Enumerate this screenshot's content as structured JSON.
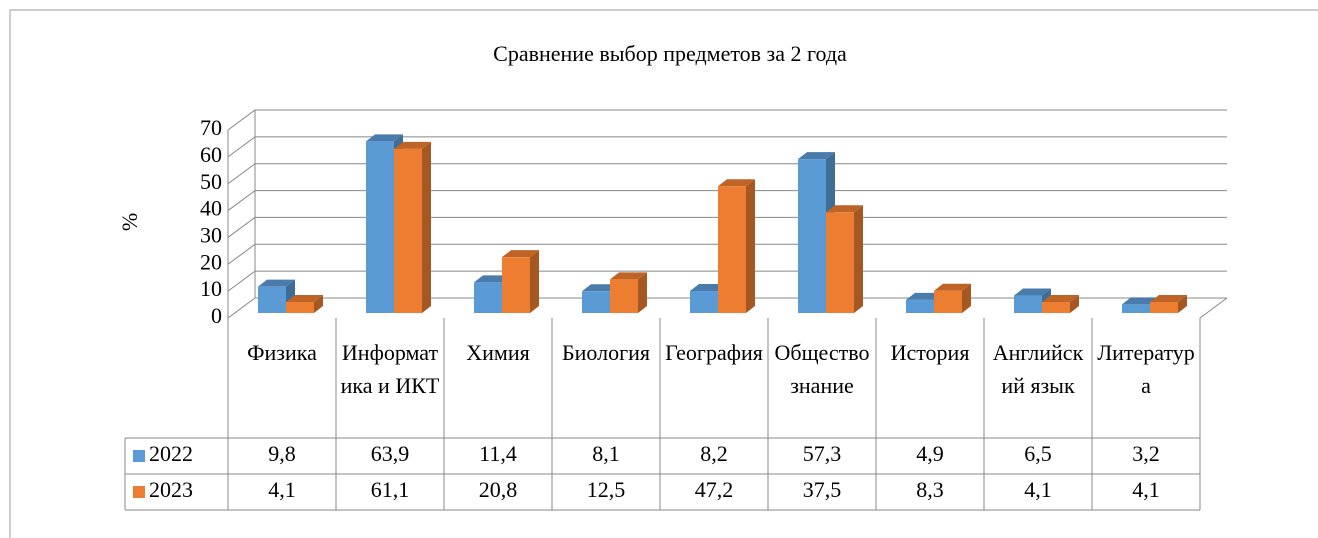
{
  "chart_data": {
    "type": "bar3d",
    "title": "Сравнение выбор  предметов за 2 года",
    "y_label": "%",
    "categories": [
      "Физика",
      "Информатика и ИКТ",
      "Химия",
      "Биология",
      "География",
      "Обществознание",
      "История",
      "Английский язык",
      "Литература"
    ],
    "series": [
      {
        "name": "2022",
        "color": "#5b9bd5",
        "values": [
          9.8,
          63.9,
          11.4,
          8.1,
          8.2,
          57.3,
          4.9,
          6.5,
          3.2
        ],
        "value_labels": [
          "9,8",
          "63,9",
          "11,4",
          "8,1",
          "8,2",
          "57,3",
          "4,9",
          "6,5",
          "3,2"
        ]
      },
      {
        "name": "2023",
        "color": "#ed7d31",
        "values": [
          4.1,
          61.1,
          20.8,
          12.5,
          47.2,
          37.5,
          8.3,
          4.1,
          4.1
        ],
        "value_labels": [
          "4,1",
          "61,1",
          "20,8",
          "12,5",
          "47,2",
          "37,5",
          "8,3",
          "4,1",
          "4,1"
        ]
      }
    ],
    "ylim": [
      0,
      70
    ],
    "yticks": [
      0,
      10,
      20,
      30,
      40,
      50,
      60,
      70
    ],
    "grid": true,
    "data_table": true
  }
}
